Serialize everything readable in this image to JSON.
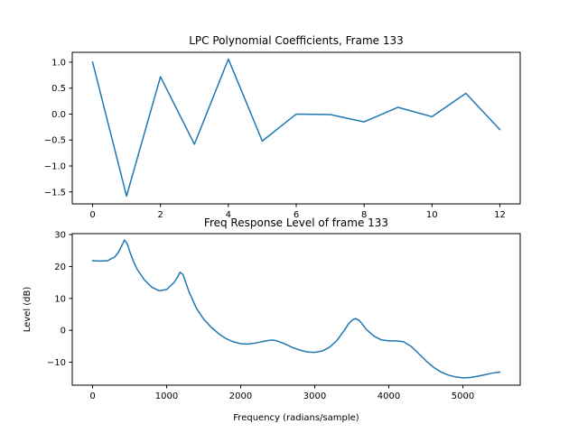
{
  "chart_data": [
    {
      "type": "line",
      "title": "LPC Polynomial Coefficients, Frame 133",
      "xlabel": "",
      "ylabel": "",
      "xlim": [
        -0.6,
        12.6
      ],
      "ylim": [
        -1.73,
        1.19
      ],
      "grid": false,
      "x": [
        0,
        1,
        2,
        3,
        4,
        5,
        6,
        7,
        8,
        9,
        10,
        11,
        12
      ],
      "series": [
        {
          "color": "#1f77b4",
          "values": [
            1.0,
            -1.58,
            0.72,
            -0.58,
            1.06,
            -0.52,
            0.0,
            -0.01,
            -0.15,
            0.13,
            -0.05,
            0.4,
            -0.3
          ]
        }
      ],
      "xticks": [
        0,
        2,
        4,
        6,
        8,
        10,
        12
      ],
      "xtick_labels": [
        "0",
        "2",
        "4",
        "6",
        "8",
        "10",
        "12"
      ],
      "yticks": [
        1.0,
        0.5,
        0.0,
        -0.5,
        -1.0,
        -1.5
      ],
      "ytick_labels": [
        "1.0",
        "0.5",
        "0.0",
        "−0.5",
        "−1.0",
        "−1.5"
      ]
    },
    {
      "type": "line",
      "title": "Freq Response Level of frame 133",
      "xlabel": "Frequency (radians/sample)",
      "ylabel": "Level (dB)",
      "xlim": [
        -275,
        5775
      ],
      "ylim": [
        -17.2,
        30.3
      ],
      "grid": false,
      "x": [
        0,
        100,
        200,
        300,
        350,
        400,
        430,
        470,
        500,
        550,
        600,
        700,
        800,
        900,
        1000,
        1100,
        1150,
        1180,
        1220,
        1300,
        1400,
        1500,
        1600,
        1700,
        1800,
        1900,
        2000,
        2100,
        2200,
        2300,
        2400,
        2450,
        2500,
        2600,
        2700,
        2800,
        2900,
        3000,
        3100,
        3200,
        3300,
        3400,
        3450,
        3500,
        3550,
        3600,
        3650,
        3700,
        3800,
        3900,
        4000,
        4100,
        4200,
        4300,
        4400,
        4500,
        4600,
        4700,
        4800,
        4900,
        5000,
        5100,
        5200,
        5300,
        5400,
        5500
      ],
      "series": [
        {
          "color": "#1f77b4",
          "values": [
            21.8,
            21.7,
            21.8,
            23.0,
            24.5,
            26.8,
            28.3,
            27.0,
            24.8,
            21.7,
            19.2,
            15.8,
            13.5,
            12.4,
            12.8,
            15.0,
            16.8,
            18.2,
            17.5,
            12.2,
            7.0,
            3.5,
            1.0,
            -1.0,
            -2.6,
            -3.6,
            -4.2,
            -4.3,
            -4.0,
            -3.5,
            -3.1,
            -3.1,
            -3.4,
            -4.3,
            -5.4,
            -6.2,
            -6.8,
            -6.9,
            -6.5,
            -5.3,
            -3.2,
            0.0,
            1.8,
            3.1,
            3.7,
            3.1,
            1.7,
            0.2,
            -1.8,
            -3.0,
            -3.3,
            -3.3,
            -3.6,
            -5.0,
            -7.2,
            -9.5,
            -11.5,
            -13.0,
            -14.0,
            -14.6,
            -14.9,
            -14.8,
            -14.4,
            -13.9,
            -13.4,
            -13.1
          ]
        }
      ],
      "xticks": [
        0,
        1000,
        2000,
        3000,
        4000,
        5000
      ],
      "xtick_labels": [
        "0",
        "1000",
        "2000",
        "3000",
        "4000",
        "5000"
      ],
      "yticks": [
        30,
        20,
        10,
        0,
        -10
      ],
      "ytick_labels": [
        "30",
        "20",
        "10",
        "0",
        "−10"
      ]
    }
  ]
}
